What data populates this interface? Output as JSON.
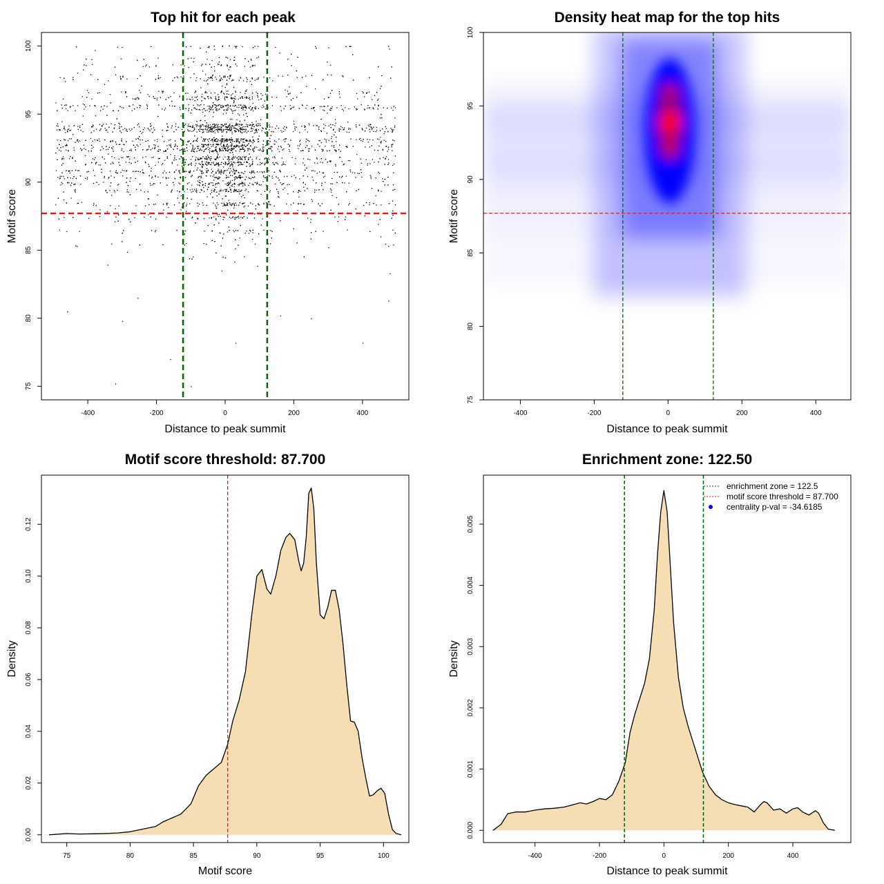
{
  "chart_data": [
    {
      "type": "scatter",
      "title": "Top hit for each peak",
      "xlabel": "Distance to peak summit",
      "ylabel": "Motif score",
      "xlim": [
        -535,
        535
      ],
      "ylim": [
        74,
        101
      ],
      "xticks": [
        -400,
        -200,
        0,
        200,
        400
      ],
      "yticks": [
        75,
        80,
        85,
        90,
        95,
        100
      ],
      "vlines": [
        -122.5,
        122.5
      ],
      "hline": 87.7,
      "vline_color": "#006400",
      "hline_color": "#e31a1c",
      "point_color": "#000000",
      "distribution": {
        "score_levels": [
          100,
          99.1,
          98.6,
          97.8,
          97.6,
          96.6,
          96.2,
          95.6,
          95.4,
          94.2,
          94.0,
          93.8,
          93.1,
          92.7,
          92.4,
          91.8,
          91.4,
          90.8,
          90.4,
          89.9,
          89.4,
          88.4,
          87.4,
          86.4,
          85.4
        ],
        "x_range": [
          -495,
          495
        ],
        "center_sd": 62
      }
    },
    {
      "type": "heatmap",
      "title": "Density heat map for the top hits",
      "xlabel": "Distance to peak summit",
      "ylabel": "Motif score",
      "xlim": [
        -500,
        495
      ],
      "ylim": [
        75,
        100
      ],
      "xticks": [
        -400,
        -200,
        0,
        200,
        400
      ],
      "yticks": [
        75,
        80,
        85,
        90,
        95,
        100
      ],
      "vlines": [
        -122.5,
        122.5
      ],
      "hline": 87.7,
      "peak": {
        "x": 5,
        "y": 93.9
      },
      "colors": [
        "#ffffff",
        "#0000ff",
        "#ff0000"
      ]
    },
    {
      "type": "area",
      "title": "Motif score threshold: 87.700",
      "xlabel": "Motif score",
      "ylabel": "Density",
      "xlim": [
        73,
        102
      ],
      "ylim": [
        -0.003,
        0.139
      ],
      "xticks": [
        75,
        80,
        85,
        90,
        95,
        100
      ],
      "yticks": [
        0.0,
        0.02,
        0.04,
        0.06,
        0.08,
        0.1,
        0.12
      ],
      "ytick_labels": [
        "0.00",
        "0.02",
        "0.04",
        "0.06",
        "0.08",
        "0.10",
        "0.12"
      ],
      "vline": 87.7,
      "fill": "#f5deb3",
      "x": [
        73.6,
        75,
        76,
        77,
        78,
        79,
        80,
        81,
        82,
        82.6,
        83.3,
        84,
        84.8,
        85.4,
        86,
        86.6,
        87.2,
        87.7,
        88.1,
        88.6,
        89.1,
        89.6,
        90.0,
        90.4,
        90.8,
        91.1,
        91.5,
        91.9,
        92.3,
        92.6,
        93.0,
        93.3,
        93.5,
        93.7,
        93.9,
        94.1,
        94.3,
        94.5,
        94.7,
        95.0,
        95.3,
        95.6,
        95.9,
        96.2,
        96.5,
        96.8,
        97.1,
        97.4,
        97.7,
        98.0,
        98.3,
        98.6,
        98.9,
        99.2,
        99.5,
        99.8,
        100.1,
        100.4,
        100.7,
        101.0,
        101.4
      ],
      "y": [
        0,
        0.0005,
        0.0003,
        0.0004,
        0.0005,
        0.0007,
        0.0012,
        0.0022,
        0.0032,
        0.005,
        0.0065,
        0.008,
        0.012,
        0.019,
        0.023,
        0.0255,
        0.028,
        0.035,
        0.044,
        0.052,
        0.063,
        0.085,
        0.1,
        0.1025,
        0.095,
        0.093,
        0.1,
        0.11,
        0.115,
        0.1165,
        0.114,
        0.106,
        0.102,
        0.105,
        0.115,
        0.132,
        0.134,
        0.126,
        0.105,
        0.085,
        0.0835,
        0.088,
        0.0945,
        0.0945,
        0.087,
        0.074,
        0.058,
        0.044,
        0.0435,
        0.04,
        0.03,
        0.022,
        0.015,
        0.0155,
        0.017,
        0.018,
        0.016,
        0.008,
        0.002,
        0.0005,
        0
      ]
    },
    {
      "type": "area",
      "title": "Enrichment zone: 122.50",
      "xlabel": "Distance to peak summit",
      "ylabel": "Density",
      "xlim": [
        -560,
        580
      ],
      "ylim": [
        -0.0002,
        0.0058
      ],
      "xticks": [
        -400,
        -200,
        0,
        200,
        400
      ],
      "yticks": [
        0,
        0.001,
        0.002,
        0.003,
        0.004,
        0.005
      ],
      "ytick_labels": [
        "0.000",
        "0.001",
        "0.002",
        "0.003",
        "0.004",
        "0.005"
      ],
      "vlines": [
        -122.5,
        122.5
      ],
      "fill": "#f5deb3",
      "legend": {
        "position": "top-right",
        "items": [
          {
            "label": "enrichment zone = 122.5",
            "style": "dotted-line",
            "color": "#006400"
          },
          {
            "label": "motif score threshold = 87.700",
            "style": "dotted-line",
            "color": "#e31a1c"
          },
          {
            "label": "centrality p-val = -34.6185",
            "style": "point",
            "color": "#0000ff"
          }
        ]
      },
      "x": [
        -530,
        -505,
        -485,
        -460,
        -430,
        -400,
        -370,
        -340,
        -310,
        -280,
        -260,
        -240,
        -220,
        -200,
        -180,
        -160,
        -140,
        -120,
        -105,
        -90,
        -75,
        -60,
        -45,
        -30,
        -20,
        -10,
        0,
        10,
        20,
        30,
        45,
        60,
        75,
        90,
        105,
        120,
        140,
        160,
        180,
        200,
        220,
        240,
        260,
        280,
        300,
        310,
        320,
        340,
        360,
        380,
        400,
        415,
        430,
        450,
        470,
        480,
        495,
        510,
        530
      ],
      "y": [
        0.0,
        0.0001,
        0.00027,
        0.0003,
        0.0003,
        0.00033,
        0.00035,
        0.00036,
        0.00038,
        0.00042,
        0.00045,
        0.00043,
        0.00047,
        0.00052,
        0.0005,
        0.00058,
        0.0008,
        0.0011,
        0.0016,
        0.0019,
        0.00215,
        0.0024,
        0.0028,
        0.0036,
        0.0045,
        0.0052,
        0.00555,
        0.0052,
        0.0043,
        0.0034,
        0.0025,
        0.002,
        0.0017,
        0.00145,
        0.0012,
        0.00095,
        0.00072,
        0.00058,
        0.0005,
        0.00045,
        0.00042,
        0.0004,
        0.00038,
        0.0003,
        0.00042,
        0.00047,
        0.00045,
        0.00033,
        0.00035,
        0.00028,
        0.00035,
        0.00037,
        0.0003,
        0.00025,
        0.00032,
        0.00028,
        0.00012,
        2e-05,
        0.0
      ]
    }
  ]
}
